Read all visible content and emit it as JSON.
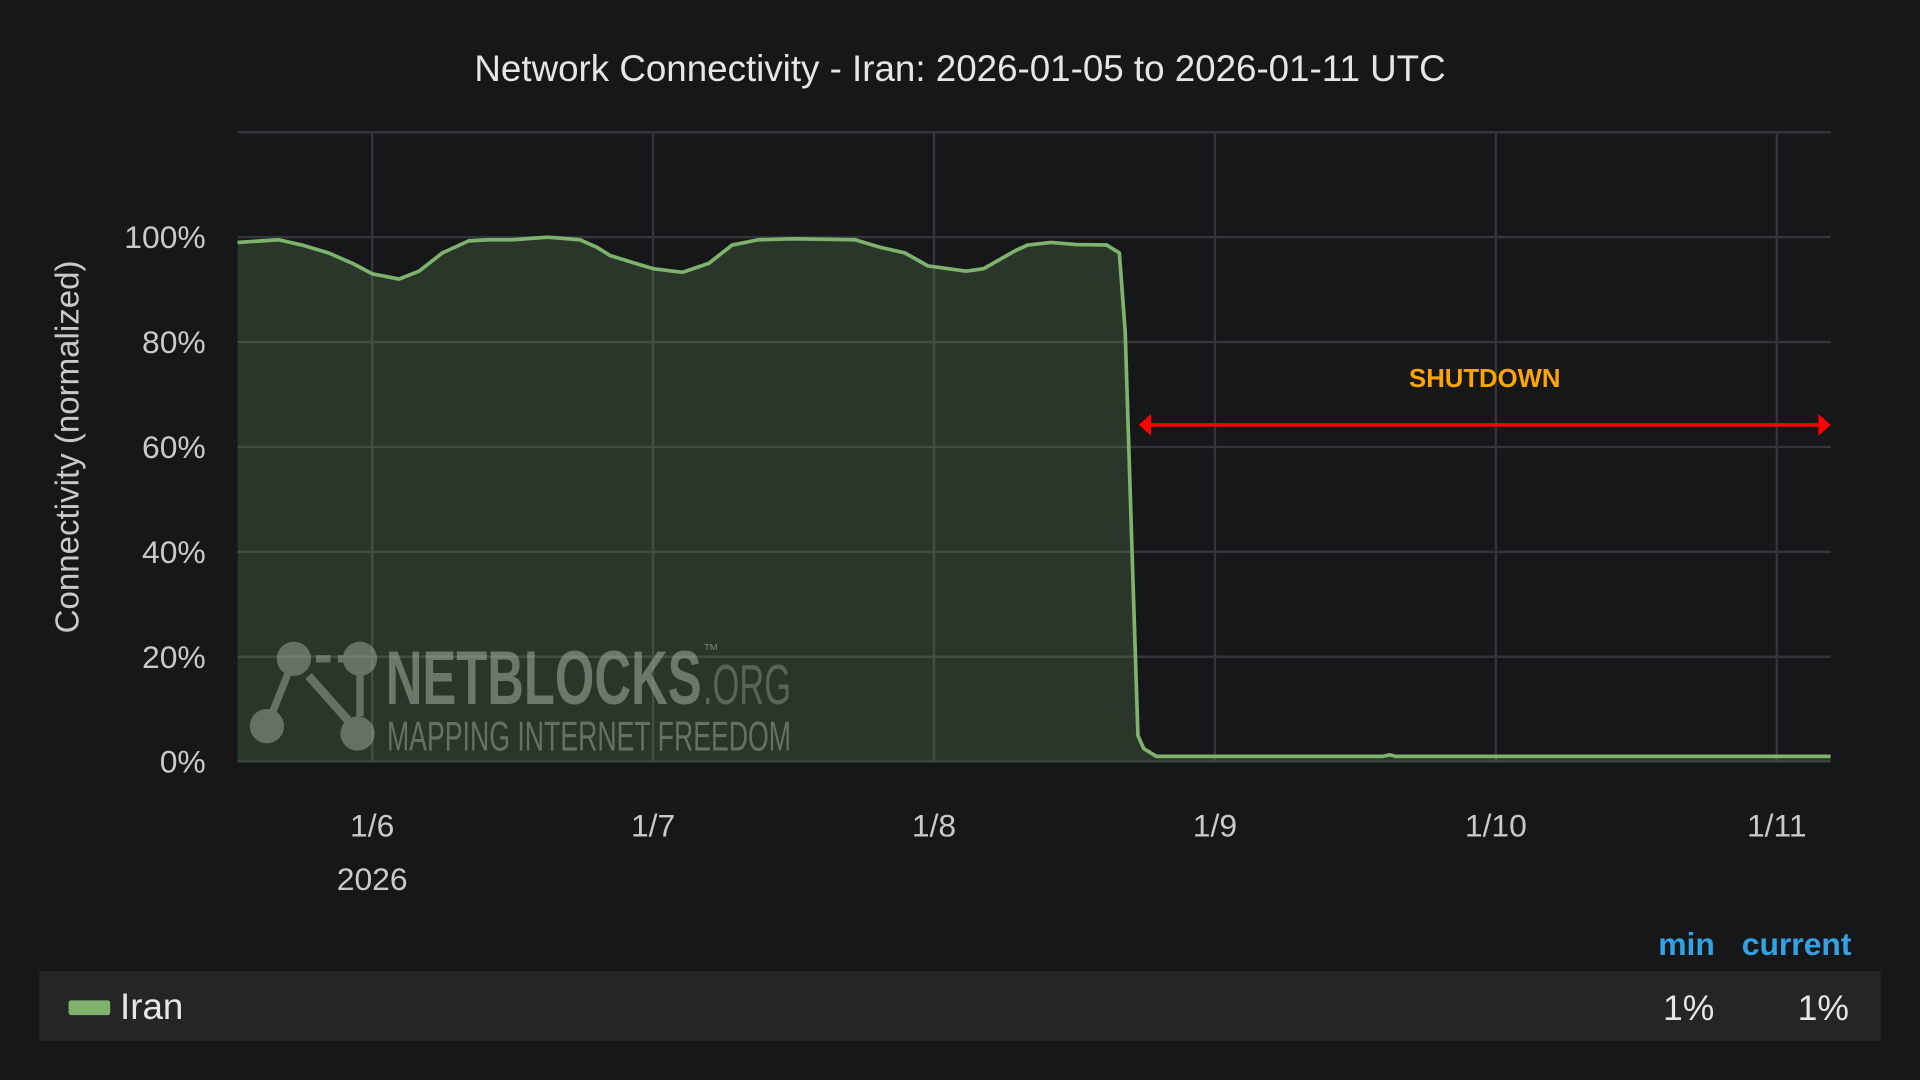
{
  "chart_data": {
    "type": "area",
    "title": "Network Connectivity - Iran: 2026-01-05 to 2026-01-11 UTC",
    "ylabel": "Connectivity (normalized)",
    "xlabel": "",
    "ylim": [
      0,
      120
    ],
    "xlim": [
      "2026-01-05T12:30",
      "2026-01-11T04:36"
    ],
    "y_ticks": [
      "0%",
      "20%",
      "40%",
      "60%",
      "80%",
      "100%"
    ],
    "y_tick_values": [
      0,
      20,
      40,
      60,
      80,
      100
    ],
    "x_ticks": [
      {
        "date": "2026-01-06T00:00",
        "label": "1/6",
        "sublabel": "2026"
      },
      {
        "date": "2026-01-07T00:00",
        "label": "1/7"
      },
      {
        "date": "2026-01-08T00:00",
        "label": "1/8"
      },
      {
        "date": "2026-01-09T00:00",
        "label": "1/9"
      },
      {
        "date": "2026-01-10T00:00",
        "label": "1/10"
      },
      {
        "date": "2026-01-11T00:00",
        "label": "1/11"
      }
    ],
    "grid": true,
    "series": [
      {
        "name": "Iran",
        "color": "#7eb26d",
        "points": [
          [
            "2026-01-05T12:30",
            99
          ],
          [
            "2026-01-05T16:00",
            99.5
          ],
          [
            "2026-01-05T18:00",
            98.5
          ],
          [
            "2026-01-05T20:15",
            97
          ],
          [
            "2026-01-05T22:20",
            95
          ],
          [
            "2026-01-06T00:00",
            93
          ],
          [
            "2026-01-06T02:18",
            92
          ],
          [
            "2026-01-06T04:00",
            93.5
          ],
          [
            "2026-01-06T06:00",
            97
          ],
          [
            "2026-01-06T08:15",
            99.3
          ],
          [
            "2026-01-06T10:00",
            99.5
          ],
          [
            "2026-01-06T12:00",
            99.5
          ],
          [
            "2026-01-06T15:00",
            100
          ],
          [
            "2026-01-06T17:45",
            99.5
          ],
          [
            "2026-01-06T19:15",
            98
          ],
          [
            "2026-01-06T20:20",
            96.5
          ],
          [
            "2026-01-06T22:30",
            95
          ],
          [
            "2026-01-07T00:00",
            94
          ],
          [
            "2026-01-07T02:30",
            93.3
          ],
          [
            "2026-01-07T04:45",
            95
          ],
          [
            "2026-01-07T06:45",
            98.5
          ],
          [
            "2026-01-07T09:00",
            99.5
          ],
          [
            "2026-01-07T12:00",
            99.7
          ],
          [
            "2026-01-07T17:15",
            99.5
          ],
          [
            "2026-01-07T19:30",
            98
          ],
          [
            "2026-01-07T21:30",
            97
          ],
          [
            "2026-01-07T23:30",
            94.5
          ],
          [
            "2026-01-08T02:45",
            93.5
          ],
          [
            "2026-01-08T04:15",
            94
          ],
          [
            "2026-01-08T07:00",
            97.5
          ],
          [
            "2026-01-08T08:00",
            98.5
          ],
          [
            "2026-01-08T10:00",
            99
          ],
          [
            "2026-01-08T12:10",
            98.6
          ],
          [
            "2026-01-08T14:45",
            98.5
          ],
          [
            "2026-01-08T15:50",
            97
          ],
          [
            "2026-01-08T16:20",
            82
          ],
          [
            "2026-01-08T16:55",
            40
          ],
          [
            "2026-01-08T17:25",
            5
          ],
          [
            "2026-01-08T17:55",
            2.5
          ],
          [
            "2026-01-08T19:00",
            1
          ],
          [
            "2026-01-09T14:20",
            1
          ],
          [
            "2026-01-09T14:55",
            1.3
          ],
          [
            "2026-01-09T15:25",
            1
          ],
          [
            "2026-01-11T04:36",
            1
          ]
        ]
      }
    ],
    "annotation": {
      "label": "SHUTDOWN",
      "label_color": "#ffa500",
      "arrow_color": "#ff0000",
      "from": "2026-01-08T17:30",
      "to": "2026-01-11T04:36",
      "y": 64
    },
    "legend": {
      "placement": "bottom",
      "columns": [
        "min",
        "current"
      ],
      "rows": [
        {
          "name": "Iran",
          "min": "1%",
          "current": "1%"
        }
      ]
    }
  },
  "watermark": {
    "brand": "NETBLOCKS",
    "tm": "™",
    "suffix": ".ORG",
    "tagline": "MAPPING INTERNET FREEDOM"
  }
}
